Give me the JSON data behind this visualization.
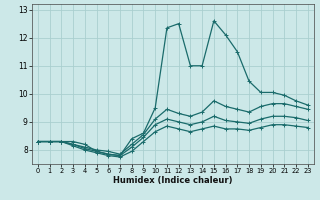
{
  "title": "",
  "xlabel": "Humidex (Indice chaleur)",
  "background_color": "#cce8e8",
  "line_color": "#1a6b6b",
  "grid_color": "#aacfcf",
  "hours": [
    0,
    1,
    2,
    3,
    4,
    5,
    6,
    7,
    8,
    9,
    10,
    11,
    12,
    13,
    14,
    15,
    16,
    17,
    18,
    19,
    20,
    21,
    22,
    23
  ],
  "line_top": [
    8.3,
    8.3,
    8.3,
    8.3,
    8.2,
    7.95,
    7.85,
    7.8,
    8.4,
    8.6,
    9.5,
    12.35,
    12.5,
    11.0,
    11.0,
    12.6,
    12.1,
    11.5,
    10.45,
    10.05,
    10.05,
    9.95,
    9.75,
    9.6
  ],
  "line_upper": [
    8.3,
    8.3,
    8.3,
    8.2,
    8.1,
    8.0,
    7.95,
    7.85,
    8.2,
    8.55,
    9.1,
    9.45,
    9.3,
    9.2,
    9.35,
    9.75,
    9.55,
    9.45,
    9.35,
    9.55,
    9.65,
    9.65,
    9.55,
    9.45
  ],
  "line_mid": [
    8.3,
    8.3,
    8.3,
    8.2,
    8.05,
    7.95,
    7.85,
    7.8,
    8.1,
    8.45,
    8.9,
    9.1,
    9.0,
    8.9,
    9.0,
    9.2,
    9.05,
    9.0,
    8.95,
    9.1,
    9.2,
    9.2,
    9.15,
    9.05
  ],
  "line_lower": [
    8.3,
    8.3,
    8.3,
    8.15,
    8.0,
    7.9,
    7.8,
    7.75,
    7.95,
    8.3,
    8.65,
    8.85,
    8.75,
    8.65,
    8.75,
    8.85,
    8.75,
    8.75,
    8.7,
    8.8,
    8.9,
    8.9,
    8.85,
    8.8
  ],
  "ylim": [
    7.5,
    13.2
  ],
  "xlim": [
    -0.5,
    23.5
  ],
  "yticks": [
    8,
    9,
    10,
    11,
    12,
    13
  ],
  "xticks": [
    0,
    1,
    2,
    3,
    4,
    5,
    6,
    7,
    8,
    9,
    10,
    11,
    12,
    13,
    14,
    15,
    16,
    17,
    18,
    19,
    20,
    21,
    22,
    23
  ]
}
